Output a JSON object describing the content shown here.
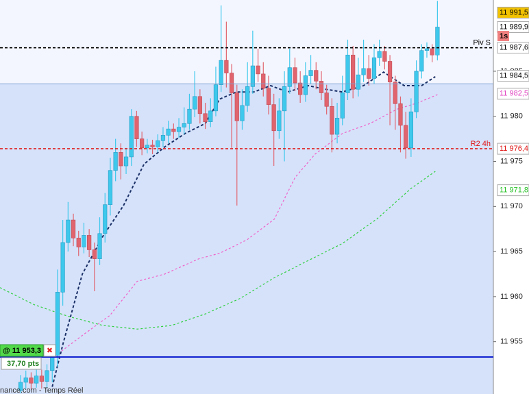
{
  "chart_data": {
    "type": "candlestick",
    "xlim": [
      -3.9,
      89.6
    ],
    "ylim": [
      11949.2,
      11992.9
    ],
    "yticks": [
      {
        "value": 11955,
        "label": "11 955"
      },
      {
        "value": 11960,
        "label": "11 960"
      },
      {
        "value": 11965,
        "label": "11 965"
      },
      {
        "value": 11970,
        "label": "11 970"
      },
      {
        "value": 11975,
        "label": "11 975"
      },
      {
        "value": 11980,
        "label": "11 980"
      },
      {
        "value": 11985,
        "label": "11 985"
      }
    ],
    "up_color": "#3ec8ec",
    "down_color": "#e0646e",
    "shade_top": 11983.6,
    "open": [
      11949.6,
      11950.5,
      11951,
      11950.4,
      11951.2,
      11950.6,
      11951.8,
      11953.5,
      11960.5,
      11966,
      11968.5,
      11966.5,
      11965.5,
      11966.8,
      11965.2,
      11964.2,
      11967,
      11970.2,
      11974,
      11976,
      11974.5,
      11975.5,
      11980,
      11977.5,
      11976.5,
      11976.8,
      11976.6,
      11977.3,
      11977.9,
      11978.6,
      11978.3,
      11978.8,
      11979.2,
      11980.8,
      11982.2,
      11980.3,
      11979.4,
      11980.6,
      11983.5,
      11986.2,
      11984.8,
      11982.6,
      11979.5,
      11981.2,
      11983.3,
      11985.6,
      11984.7,
      11983.1,
      11981.3,
      11978.4,
      11980.6,
      11983.3,
      11985.4,
      11983.7,
      11982.4,
      11984.5,
      11985.1,
      11983.9,
      11982.6,
      11981.1,
      11978,
      11979.8,
      11982.6,
      11986.8,
      11983,
      11984.6,
      11985.3,
      11984.2,
      11986.5,
      11987.2,
      11986.1,
      11983.8,
      11981.4,
      11979,
      11976.5,
      11980.5,
      11985,
      11987.3,
      11987.5,
      11986.8
    ],
    "high": [
      11951.3,
      11951.8,
      11951.6,
      11952,
      11951.9,
      11952.5,
      11954.5,
      11963,
      11968.5,
      11970.5,
      11969.2,
      11967.3,
      11968.2,
      11967.5,
      11966,
      11968.8,
      11971.5,
      11975.4,
      11977.5,
      11977,
      11976.5,
      11980.8,
      11980.6,
      11978.3,
      11977.5,
      11977.4,
      11978,
      11978.8,
      11979.5,
      11979.2,
      11979.8,
      11981,
      11982.5,
      11985,
      11983,
      11981.5,
      11982,
      11985.5,
      11992.3,
      11990.5,
      11985.8,
      11983.5,
      11983,
      11986,
      11989.5,
      11987.5,
      11986,
      11984.5,
      11982.5,
      11982,
      11985,
      11987.5,
      11986.5,
      11985,
      11986,
      11986.8,
      11986,
      11985,
      11983.5,
      11982,
      11981.5,
      11984.5,
      11988.5,
      11987.8,
      11986.5,
      11988.5,
      11986.8,
      11988,
      11988.5,
      11987.8,
      11986.8,
      11984.5,
      11982.2,
      11980.5,
      11982,
      11986.2,
      11988,
      11988.2,
      11988,
      11992.8
    ],
    "low": [
      11949.3,
      11949.8,
      11949.7,
      11949.9,
      11949.8,
      11949.9,
      11950.5,
      11952.2,
      11959,
      11965,
      11965.6,
      11964.5,
      11964.8,
      11964.4,
      11960.6,
      11963.5,
      11966,
      11969,
      11972.8,
      11973,
      11973.6,
      11974.5,
      11976.6,
      11975.7,
      11975.9,
      11975.8,
      11976,
      11976.6,
      11977,
      11977.5,
      11977.6,
      11978,
      11978.5,
      11979.9,
      11979.2,
      11978.6,
      11978.8,
      11980,
      11982.7,
      11983.2,
      11976.5,
      11970.1,
      11978.5,
      11980.5,
      11982.5,
      11983.8,
      11982.2,
      11980.2,
      11974.5,
      11977.5,
      11975,
      11982.5,
      11982.8,
      11981.5,
      11981.6,
      11983.6,
      11983,
      11981.8,
      11980.2,
      11976,
      11977,
      11979,
      11981.8,
      11982,
      11982.2,
      11983.8,
      11983.4,
      11983.6,
      11985.6,
      11985.2,
      11979,
      11978.5,
      11976,
      11975.3,
      11975.5,
      11979.8,
      11984.2,
      11986.5,
      11986,
      11986.2
    ],
    "close": [
      11950.5,
      11951,
      11950.4,
      11951.2,
      11950.6,
      11951.8,
      11953.5,
      11960.5,
      11966,
      11968.5,
      11966.5,
      11965.5,
      11966.8,
      11965.2,
      11964.2,
      11967,
      11970.2,
      11974,
      11976,
      11974.5,
      11975.5,
      11980,
      11977.5,
      11976.5,
      11976.8,
      11976.6,
      11977.3,
      11977.9,
      11978.6,
      11978.3,
      11978.8,
      11979.2,
      11980.8,
      11982.2,
      11980.3,
      11979.4,
      11980.6,
      11983.5,
      11986.2,
      11984.8,
      11982.6,
      11979.5,
      11981.2,
      11983.3,
      11985.6,
      11984.7,
      11983.1,
      11981.3,
      11978.4,
      11980.6,
      11983.3,
      11985.4,
      11983.7,
      11982.4,
      11984.5,
      11985.1,
      11983.9,
      11982.6,
      11981.1,
      11978,
      11979.8,
      11982.6,
      11986.8,
      11983,
      11984.6,
      11985.3,
      11984.2,
      11986.5,
      11987.2,
      11986.1,
      11983.8,
      11981.4,
      11979,
      11976.5,
      11980.5,
      11985,
      11987.3,
      11987.5,
      11986.8,
      11989.9
    ],
    "series": [
      {
        "color": "#1a2f66",
        "dash": "4,3",
        "x": [
          6,
          8.1,
          11.7,
          15.6,
          19.5,
          23.4,
          27.3,
          31.2,
          35,
          37.7,
          40.9,
          44.2,
          47.4,
          50.6,
          54.5,
          57.8,
          61,
          65,
          68.8,
          72.7,
          76,
          78.6
        ],
        "values": [
          11950,
          11954.9,
          11962.5,
          11966.7,
          11970.1,
          11974.7,
          11976.6,
          11978.1,
          11979.2,
          11981.9,
          11982.7,
          11982.7,
          11983.4,
          11982.7,
          11983.4,
          11983,
          11982.7,
          11983.4,
          11984.9,
          11983.4,
          11983.4,
          11984.4
        ]
      },
      {
        "color": "#f060c8",
        "dash": "3,3",
        "x": [
          6.5,
          11.7,
          16.9,
          22.1,
          27.3,
          33.8,
          37.7,
          42.9,
          48.1,
          52,
          55.8,
          61,
          66.2,
          71.4,
          75.3,
          79
        ],
        "values": [
          11953.4,
          11955.7,
          11957.9,
          11961.7,
          11962.5,
          11964.2,
          11964.8,
          11966.3,
          11968.6,
          11973.2,
          11975.8,
          11978.1,
          11979.2,
          11980.8,
          11981.5,
          11982.4
        ]
      },
      {
        "color": "#30d040",
        "dash": "3,3",
        "x": [
          -3.9,
          2.6,
          9.1,
          15.6,
          22.1,
          28.6,
          35.1,
          41.6,
          48.1,
          54.5,
          61,
          67.5,
          74,
          78.6
        ],
        "values": [
          11961,
          11959.1,
          11957.8,
          11956.8,
          11956.4,
          11956.8,
          11958.1,
          11959.8,
          11962.1,
          11964,
          11965.9,
          11968.6,
          11972,
          11973.9
        ]
      }
    ],
    "lines": [
      {
        "label": "Piv S",
        "value": 11987.6,
        "color": "#000000",
        "dash": "4,3"
      },
      {
        "label": "R2 4h",
        "value": 11976.4,
        "color": "#e01010",
        "dash": "4,3"
      },
      {
        "value": 11953.3,
        "color": "#1020d0",
        "dash": "none"
      }
    ],
    "price_tags": [
      {
        "value": 11991.5,
        "label": "11 991,5",
        "bg": "#f2c200",
        "fg": "#000000"
      },
      {
        "value": 11989.9,
        "label": "11 989,9",
        "bg": "#ffffff",
        "fg": "#000000"
      },
      {
        "value": 11987.6,
        "label": "11 987,6",
        "bg": "#ffffff",
        "fg": "#000000"
      },
      {
        "value": 11984.5,
        "label": "11 984,5",
        "bg": "#ffffff",
        "fg": "#000000"
      },
      {
        "value": 11982.5,
        "label": "11 982,5",
        "bg": "#ffffff",
        "fg": "#e040c0"
      },
      {
        "value": 11976.4,
        "label": "11 976,4",
        "bg": "#ffffff",
        "fg": "#e01010"
      },
      {
        "value": 11971.8,
        "label": "11 971,8",
        "bg": "#ffffff",
        "fg": "#20c020"
      }
    ],
    "timer_label": "1s",
    "order": {
      "label": "@ 11 953,3",
      "pts": "37,70 pts",
      "close": "✖"
    },
    "footer": "nance.com - Temps Réel"
  }
}
